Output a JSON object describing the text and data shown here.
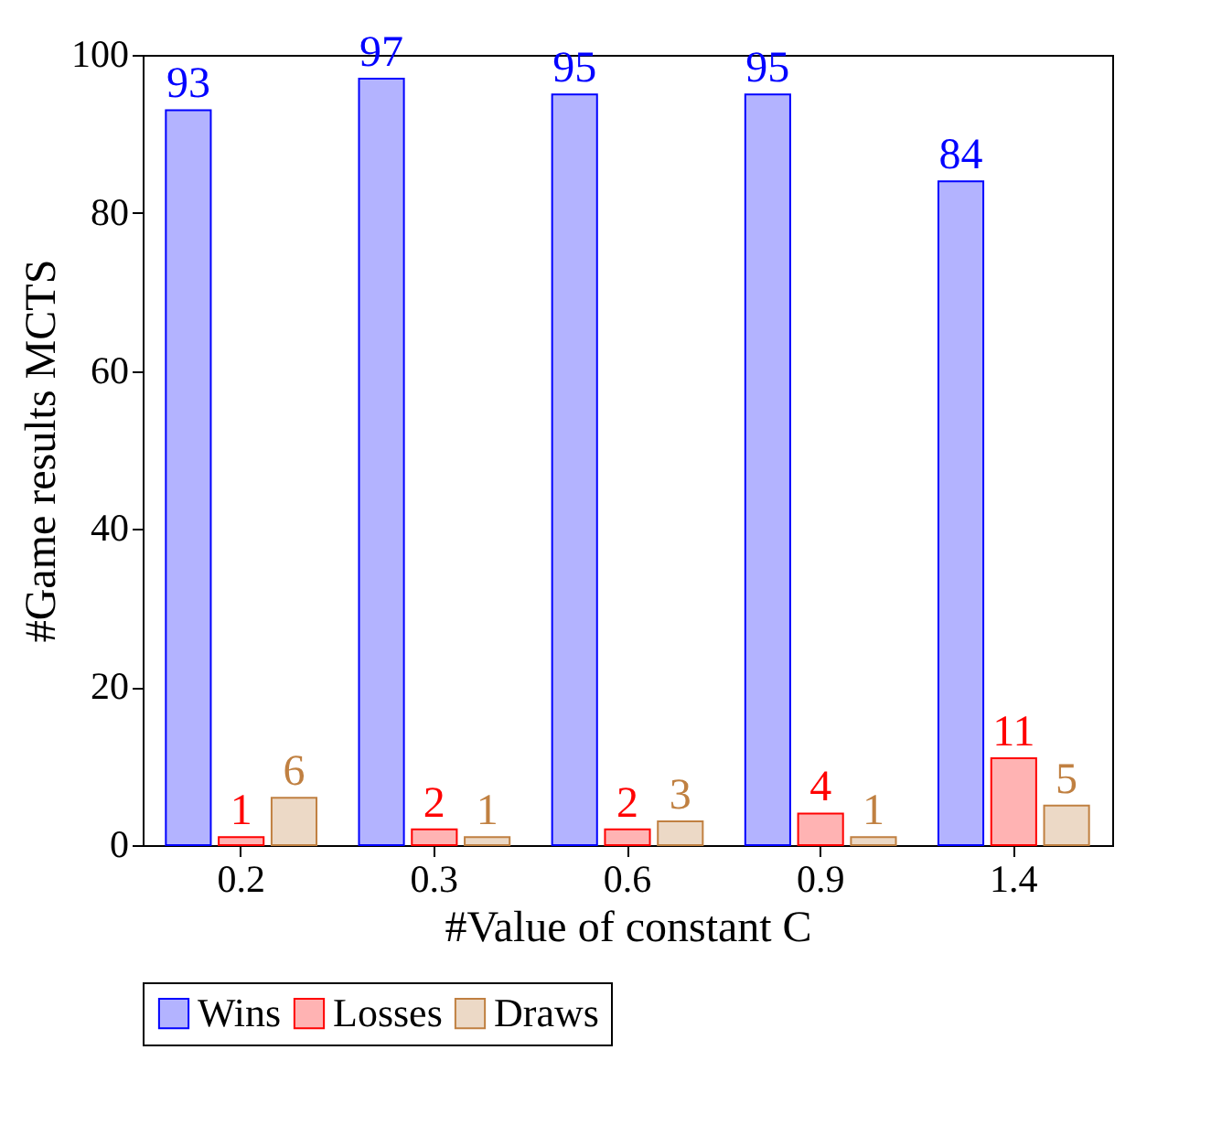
{
  "chart_data": {
    "type": "bar",
    "xlabel": "#Value of constant C",
    "ylabel": "#Game results MCTS",
    "categories": [
      "0.2",
      "0.3",
      "0.6",
      "0.9",
      "1.4"
    ],
    "series": [
      {
        "name": "Wins",
        "color": "#b3b3ff",
        "values": [
          93,
          97,
          95,
          95,
          84
        ]
      },
      {
        "name": "Losses",
        "color": "#ffb3b3",
        "values": [
          1,
          2,
          2,
          4,
          11
        ]
      },
      {
        "name": "Draws",
        "color": "#ecd9c6",
        "values": [
          6,
          1,
          3,
          1,
          5
        ]
      }
    ],
    "ylim": [
      0,
      100
    ],
    "yticks": [
      0,
      20,
      40,
      60,
      80,
      100
    ],
    "data_labels": true,
    "legend": "bottom",
    "grid": false
  }
}
